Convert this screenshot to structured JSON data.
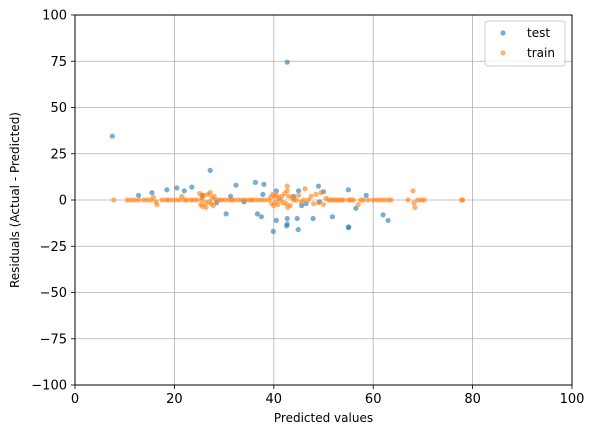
{
  "chart_data": {
    "type": "scatter",
    "xlabel": "Predicted values",
    "ylabel": "Residuals (Actual - Predicted)",
    "xlim": [
      0,
      100
    ],
    "ylim": [
      -100,
      100
    ],
    "xticks": [
      0,
      20,
      40,
      60,
      80,
      100
    ],
    "yticks": [
      -100,
      -75,
      -50,
      -25,
      0,
      25,
      50,
      75,
      100
    ],
    "xtick_labels": [
      "0",
      "20",
      "40",
      "60",
      "80",
      "100"
    ],
    "ytick_labels": [
      "−100",
      "−75",
      "−50",
      "−25",
      "0",
      "25",
      "50",
      "75",
      "100"
    ],
    "grid": true,
    "legend_position": "top-right",
    "series": [
      {
        "name": "test",
        "color": "#1f77b4",
        "points": [
          [
            7.5,
            34.5
          ],
          [
            42.7,
            74.5
          ],
          [
            27.2,
            16
          ],
          [
            36.3,
            9.5
          ],
          [
            38,
            8.5
          ],
          [
            32.4,
            8
          ],
          [
            49,
            7.5
          ],
          [
            23.5,
            7
          ],
          [
            20.5,
            6.5
          ],
          [
            18.5,
            5.5
          ],
          [
            22,
            5
          ],
          [
            40.5,
            5
          ],
          [
            45,
            5
          ],
          [
            50,
            4.5
          ],
          [
            55,
            5.5
          ],
          [
            15.5,
            4
          ],
          [
            12.8,
            2.5
          ],
          [
            25.6,
            2.5
          ],
          [
            31.3,
            2
          ],
          [
            44,
            2
          ],
          [
            58.6,
            2.5
          ],
          [
            37.8,
            3
          ],
          [
            34,
            -1
          ],
          [
            30.4,
            -7.5
          ],
          [
            36.7,
            -7.5
          ],
          [
            37.5,
            -9
          ],
          [
            42.7,
            -10
          ],
          [
            44.7,
            -10
          ],
          [
            47.9,
            -10
          ],
          [
            51.8,
            -9
          ],
          [
            40.5,
            -11
          ],
          [
            42.6,
            -14
          ],
          [
            42.7,
            -13
          ],
          [
            44.9,
            -16
          ],
          [
            55.1,
            -14.5
          ],
          [
            55,
            -15
          ],
          [
            62,
            -8
          ],
          [
            63,
            -11
          ],
          [
            39.9,
            -17
          ],
          [
            56.5,
            -4.5
          ],
          [
            45.6,
            -3
          ],
          [
            46.5,
            -2
          ],
          [
            28.5,
            -1.5
          ],
          [
            49.2,
            -1
          ]
        ]
      },
      {
        "name": "train",
        "color": "#ff7f0e",
        "points": [
          [
            7.8,
            0
          ],
          [
            10.5,
            0
          ],
          [
            11.2,
            0
          ],
          [
            12,
            0
          ],
          [
            12.8,
            0
          ],
          [
            13.8,
            0
          ],
          [
            14.5,
            0
          ],
          [
            15.3,
            0
          ],
          [
            15.8,
            1.5
          ],
          [
            16.3,
            -1
          ],
          [
            16.5,
            -2.5
          ],
          [
            17.5,
            0
          ],
          [
            18.3,
            0
          ],
          [
            18.8,
            0
          ],
          [
            19.5,
            0
          ],
          [
            20.3,
            0
          ],
          [
            21,
            0
          ],
          [
            21.5,
            2
          ],
          [
            22,
            0
          ],
          [
            22.5,
            0
          ],
          [
            23.3,
            0
          ],
          [
            23.8,
            0
          ],
          [
            24.5,
            0
          ],
          [
            25.1,
            3.5
          ],
          [
            25.3,
            -2.5
          ],
          [
            25.5,
            0
          ],
          [
            25.6,
            1.5
          ],
          [
            25.7,
            -3.5
          ],
          [
            26,
            2.5
          ],
          [
            26.3,
            -1.5
          ],
          [
            26.4,
            -4
          ],
          [
            26.8,
            3
          ],
          [
            27,
            -1
          ],
          [
            27.2,
            4
          ],
          [
            27.4,
            -2
          ],
          [
            27.6,
            1
          ],
          [
            27.8,
            -3
          ],
          [
            28,
            2
          ],
          [
            28.4,
            0
          ],
          [
            29,
            0
          ],
          [
            29.5,
            0
          ],
          [
            30.2,
            0
          ],
          [
            31,
            0
          ],
          [
            31.5,
            0
          ],
          [
            32,
            0
          ],
          [
            32.8,
            0
          ],
          [
            33.5,
            0
          ],
          [
            34.2,
            0
          ],
          [
            35,
            0
          ],
          [
            35.5,
            0
          ],
          [
            36,
            0
          ],
          [
            36.8,
            0
          ],
          [
            37.5,
            0
          ],
          [
            38.2,
            0
          ],
          [
            39,
            0
          ],
          [
            39.4,
            1.5
          ],
          [
            39.6,
            -2
          ],
          [
            39.8,
            3
          ],
          [
            40,
            -3
          ],
          [
            40.2,
            2
          ],
          [
            40.4,
            -1
          ],
          [
            40.6,
            2.5
          ],
          [
            40.8,
            -2.5
          ],
          [
            41,
            1
          ],
          [
            41.3,
            0
          ],
          [
            41.6,
            2
          ],
          [
            41.9,
            -1.5
          ],
          [
            42.2,
            3.5
          ],
          [
            42.5,
            -2
          ],
          [
            42.7,
            5
          ],
          [
            42.7,
            7.5
          ],
          [
            42.8,
            -4
          ],
          [
            43,
            2
          ],
          [
            43.3,
            -3
          ],
          [
            43.6,
            1.5
          ],
          [
            44,
            0
          ],
          [
            44.5,
            0
          ],
          [
            45,
            2.5
          ],
          [
            45.5,
            -1
          ],
          [
            46,
            0
          ],
          [
            46.3,
            6
          ],
          [
            47,
            0
          ],
          [
            47.5,
            2
          ],
          [
            48,
            -2
          ],
          [
            48.5,
            3
          ],
          [
            49,
            -1.5
          ],
          [
            49.5,
            4
          ],
          [
            50,
            -2.5
          ],
          [
            50.5,
            1
          ],
          [
            51,
            0
          ],
          [
            51.5,
            0
          ],
          [
            52,
            0
          ],
          [
            52.5,
            0
          ],
          [
            53,
            0
          ],
          [
            53.5,
            0
          ],
          [
            54,
            0
          ],
          [
            55,
            0
          ],
          [
            55.5,
            0
          ],
          [
            56,
            0
          ],
          [
            57,
            -2.5
          ],
          [
            57.5,
            0
          ],
          [
            58,
            0
          ],
          [
            59,
            0
          ],
          [
            60,
            0
          ],
          [
            60.8,
            0
          ],
          [
            61.5,
            0
          ],
          [
            62.2,
            0
          ],
          [
            63,
            0
          ],
          [
            63.6,
            0
          ],
          [
            67,
            0
          ],
          [
            68,
            5
          ],
          [
            68.2,
            -1.5
          ],
          [
            68.4,
            -4
          ],
          [
            69,
            0
          ],
          [
            69.7,
            0
          ],
          [
            70.3,
            0
          ],
          [
            77.8,
            0
          ],
          [
            78,
            0
          ]
        ]
      }
    ]
  }
}
